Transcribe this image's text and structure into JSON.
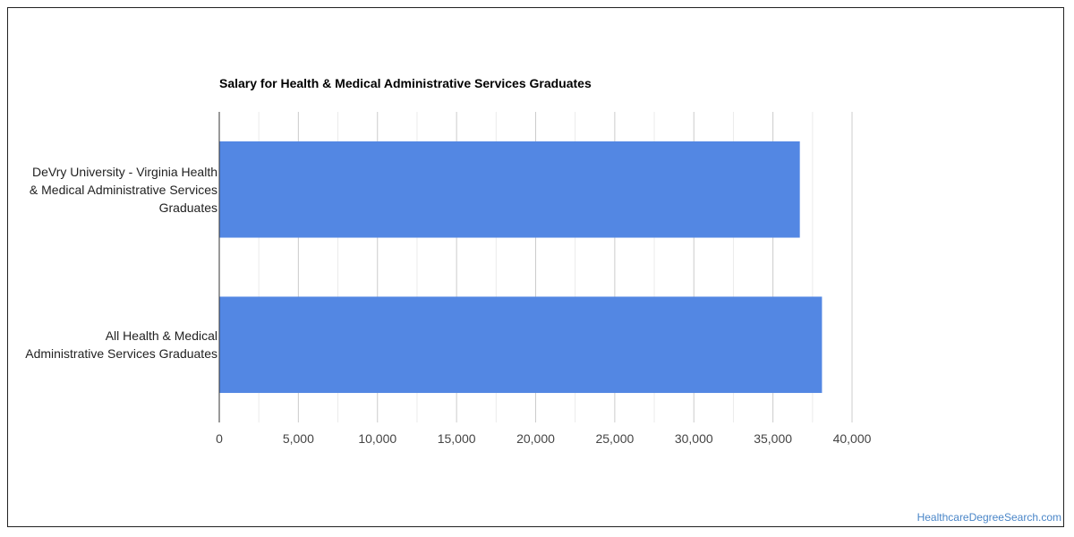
{
  "chart_data": {
    "type": "bar",
    "orientation": "horizontal",
    "title": "Salary for Health & Medical Administrative Services Graduates",
    "xlabel": "",
    "ylabel": "",
    "categories": [
      "DeVry University - Virginia Health & Medical Administrative Services Graduates",
      "All Health & Medical Administrative Services Graduates"
    ],
    "category_lines": [
      [
        "DeVry University - Virginia Health",
        "& Medical Administrative Services",
        "Graduates"
      ],
      [
        "All Health & Medical",
        "Administrative Services Graduates"
      ]
    ],
    "values": [
      36700,
      38100
    ],
    "xlim": [
      0,
      40000
    ],
    "ticks": [
      "0",
      "5,000",
      "10,000",
      "15,000",
      "20,000",
      "25,000",
      "30,000",
      "35,000",
      "40,000"
    ],
    "grid": true,
    "bar_color": "#5387e3"
  },
  "watermark": "HealthcareDegreeSearch.com"
}
